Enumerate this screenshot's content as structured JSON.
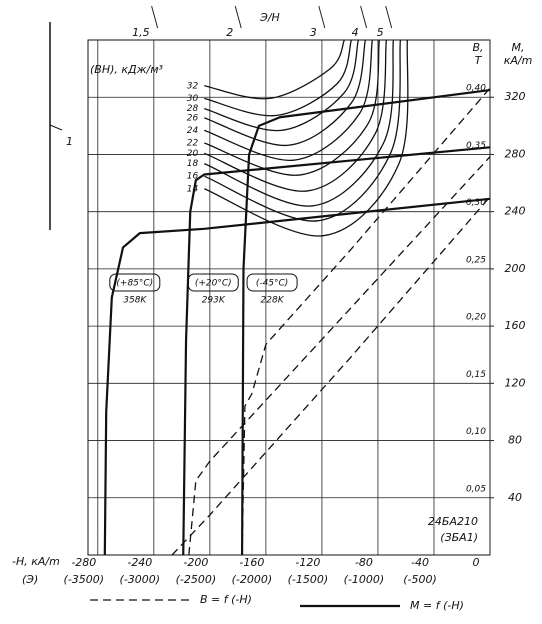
{
  "chart_data": {
    "type": "line",
    "xlabel": "-H, кА/m",
    "x2label": "(Э)",
    "ylabel": [
      "B,",
      "T"
    ],
    "y2label": [
      "M,",
      "кА/m"
    ],
    "toplabel": "Э/Н",
    "energy_label": "(BH), кДж/м³",
    "side_label": "1",
    "code": [
      "24БА210",
      "(ЗБА1)"
    ],
    "xlim": [
      -287,
      0
    ],
    "xticks": [
      -280,
      -240,
      -200,
      -160,
      -120,
      -80,
      -40,
      0
    ],
    "x2ticks": [
      "(-3500)",
      "(-3000)",
      "(-2500)",
      "(-2000)",
      "(-1500)",
      "(-1000)",
      "(-500)"
    ],
    "ylim": [
      0,
      0.45
    ],
    "yticks": [
      {
        "value": 0.05,
        "label": "0,05"
      },
      {
        "value": 0.1,
        "label": "0,10"
      },
      {
        "value": 0.15,
        "label": "0,15"
      },
      {
        "value": 0.2,
        "label": "0,20"
      },
      {
        "value": 0.25,
        "label": "0,25"
      },
      {
        "value": 0.3,
        "label": "0,30"
      },
      {
        "value": 0.35,
        "label": "0,35"
      },
      {
        "value": 0.4,
        "label": "0,40"
      }
    ],
    "y2lim": [
      0,
      360
    ],
    "y2ticks": [
      40,
      80,
      120,
      160,
      200,
      240,
      280,
      320
    ],
    "top_ticks": [
      {
        "value": 1.5,
        "label": "1,5"
      },
      2,
      3,
      4,
      5
    ],
    "grid": true,
    "annotations": [
      {
        "text": "(+85°C)",
        "sub": "358K"
      },
      {
        "text": "(+20°C)",
        "sub": "293K"
      },
      {
        "text": "(-45°C)",
        "sub": "228K"
      }
    ],
    "legend": [
      {
        "label": "B = f (-H)",
        "style": "dashed"
      },
      {
        "label": "M = f (-H)",
        "style": "solid"
      }
    ],
    "series": [
      {
        "group": "M",
        "axis": "y2",
        "style": "solid",
        "color": "#111",
        "x": [
          -275,
          -274,
          -270,
          -262,
          -250,
          -204,
          0
        ],
        "values": [
          0,
          100,
          180,
          215,
          225,
          228,
          249
        ]
      },
      {
        "group": "M",
        "axis": "y2",
        "style": "solid",
        "color": "#111",
        "x": [
          -219,
          -217,
          -214,
          -210,
          -204,
          0
        ],
        "values": [
          0,
          150,
          240,
          262,
          266,
          285
        ]
      },
      {
        "group": "M",
        "axis": "y2",
        "style": "solid",
        "color": "#111",
        "x": [
          -177,
          -176,
          -172,
          -165,
          -150,
          0
        ],
        "values": [
          0,
          200,
          280,
          300,
          306,
          325
        ]
      },
      {
        "group": "B",
        "style": "dashed",
        "color": "#111",
        "x": [
          -227,
          -200,
          -100,
          0
        ],
        "values": [
          0,
          0.035,
          0.172,
          0.313
        ]
      },
      {
        "group": "B",
        "style": "dashed",
        "color": "#111",
        "x": [
          -215,
          -210,
          -200,
          -100,
          0
        ],
        "values": [
          0,
          0.065,
          0.082,
          0.215,
          0.348
        ]
      },
      {
        "group": "B",
        "style": "dashed",
        "color": "#111",
        "x": [
          -177,
          -175,
          -170,
          -160,
          -100,
          0
        ],
        "values": [
          0,
          0.13,
          0.141,
          0.184,
          0.266,
          0.408
        ]
      },
      {
        "group": "BH",
        "name": "32",
        "style": "thin",
        "color": "#111",
        "x": [
          -204,
          -157,
          -114,
          -104
        ],
        "values": [
          0.41,
          0.399,
          0.425,
          0.45
        ]
      },
      {
        "group": "BH",
        "name": "30",
        "style": "thin",
        "color": "#111",
        "x": [
          -204,
          -153,
          -109,
          -99
        ],
        "values": [
          0.399,
          0.384,
          0.412,
          0.45
        ]
      },
      {
        "group": "BH",
        "name": "28",
        "style": "thin",
        "color": "#111",
        "x": [
          -204,
          -149,
          -104,
          -94
        ],
        "values": [
          0.39,
          0.371,
          0.404,
          0.45
        ]
      },
      {
        "group": "BH",
        "name": "26",
        "style": "thin",
        "color": "#111",
        "x": [
          -204,
          -144,
          -99,
          -89
        ],
        "values": [
          0.382,
          0.358,
          0.395,
          0.45
        ]
      },
      {
        "group": "BH",
        "name": "24",
        "style": "thin",
        "color": "#111",
        "x": [
          -204,
          -140,
          -93,
          -84
        ],
        "values": [
          0.371,
          0.345,
          0.386,
          0.45
        ]
      },
      {
        "group": "BH",
        "name": "22",
        "style": "thin",
        "color": "#111",
        "x": [
          -204,
          -136,
          -87,
          -79
        ],
        "values": [
          0.36,
          0.332,
          0.377,
          0.45
        ]
      },
      {
        "group": "BH",
        "name": "20",
        "style": "thin",
        "color": "#111",
        "x": [
          -204,
          -131,
          -82,
          -74
        ],
        "values": [
          0.351,
          0.318,
          0.368,
          0.45
        ]
      },
      {
        "group": "BH",
        "name": "18",
        "style": "thin",
        "color": "#111",
        "x": [
          -204,
          -127,
          -76,
          -69
        ],
        "values": [
          0.342,
          0.305,
          0.36,
          0.45
        ]
      },
      {
        "group": "BH",
        "name": "16",
        "style": "thin",
        "color": "#111",
        "x": [
          -204,
          -123,
          -71,
          -64
        ],
        "values": [
          0.331,
          0.292,
          0.351,
          0.45
        ]
      },
      {
        "group": "BH",
        "name": "14",
        "style": "thin",
        "color": "#111",
        "x": [
          -204,
          -119,
          -65,
          -59
        ],
        "values": [
          0.32,
          0.279,
          0.342,
          0.45
        ]
      }
    ]
  }
}
